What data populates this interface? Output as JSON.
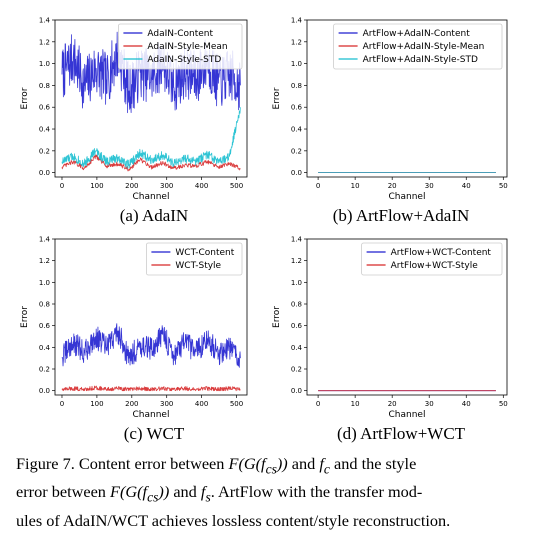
{
  "chart_data": [
    {
      "type": "line",
      "panel": "(a) AdaIN",
      "xlabel": "Channel",
      "ylabel": "Error",
      "xlim": [
        -20,
        530
      ],
      "ylim": [
        -0.04,
        1.4
      ],
      "xticks": [
        0,
        100,
        200,
        300,
        400,
        500
      ],
      "yticks": [
        0.0,
        0.2,
        0.4,
        0.6,
        0.8,
        1.0,
        1.2,
        1.4
      ],
      "legend_position": "top-right",
      "n_points": 512,
      "series": [
        {
          "name": "AdaIN-Content",
          "color": "#1f1fcf",
          "x": [
            0,
            32,
            64,
            96,
            128,
            160,
            192,
            224,
            256,
            288,
            320,
            352,
            384,
            416,
            448,
            480,
            511
          ],
          "values": [
            0.9,
            1.05,
            0.8,
            0.95,
            0.85,
            1.1,
            0.75,
            0.92,
            0.88,
            1.0,
            0.78,
            0.93,
            0.86,
            1.02,
            0.82,
            0.9,
            0.8
          ]
        },
        {
          "name": "AdaIN-Style-Mean",
          "color": "#d62728",
          "x": [
            0,
            32,
            64,
            96,
            128,
            160,
            192,
            224,
            256,
            288,
            320,
            352,
            384,
            416,
            448,
            480,
            511
          ],
          "values": [
            0.05,
            0.1,
            0.04,
            0.15,
            0.06,
            0.08,
            0.03,
            0.12,
            0.05,
            0.09,
            0.04,
            0.07,
            0.06,
            0.1,
            0.05,
            0.08,
            0.04
          ]
        },
        {
          "name": "AdaIN-Style-STD",
          "color": "#17becf",
          "x": [
            0,
            32,
            64,
            96,
            128,
            160,
            192,
            224,
            256,
            288,
            320,
            352,
            384,
            416,
            448,
            480,
            511
          ],
          "values": [
            0.1,
            0.15,
            0.08,
            0.2,
            0.1,
            0.14,
            0.07,
            0.18,
            0.12,
            0.16,
            0.08,
            0.13,
            0.1,
            0.17,
            0.09,
            0.15,
            0.6
          ]
        }
      ]
    },
    {
      "type": "line",
      "panel": "(b) ArtFlow+AdaIN",
      "xlabel": "Channel",
      "ylabel": "Error",
      "xlim": [
        -3,
        51
      ],
      "ylim": [
        -0.04,
        1.4
      ],
      "xticks": [
        0,
        10,
        20,
        30,
        40,
        50
      ],
      "yticks": [
        0.0,
        0.2,
        0.4,
        0.6,
        0.8,
        1.0,
        1.2,
        1.4
      ],
      "legend_position": "top-right",
      "series": [
        {
          "name": "ArtFlow+AdaIN-Content",
          "color": "#1f1fcf",
          "x": [
            0,
            48
          ],
          "values": [
            0.0,
            0.0
          ]
        },
        {
          "name": "ArtFlow+AdaIN-Style-Mean",
          "color": "#d62728",
          "x": [
            0,
            48
          ],
          "values": [
            0.0,
            0.0
          ]
        },
        {
          "name": "ArtFlow+AdaIN-Style-STD",
          "color": "#17becf",
          "x": [
            0,
            48
          ],
          "values": [
            0.0,
            0.0
          ]
        }
      ]
    },
    {
      "type": "line",
      "panel": "(c) WCT",
      "xlabel": "Channel",
      "ylabel": "Error",
      "xlim": [
        -20,
        530
      ],
      "ylim": [
        -0.04,
        1.4
      ],
      "xticks": [
        0,
        100,
        200,
        300,
        400,
        500
      ],
      "yticks": [
        0.0,
        0.2,
        0.4,
        0.6,
        0.8,
        1.0,
        1.2,
        1.4
      ],
      "legend_position": "top-right",
      "n_points": 512,
      "series": [
        {
          "name": "WCT-Content",
          "color": "#1f1fcf",
          "x": [
            0,
            32,
            64,
            96,
            128,
            160,
            192,
            224,
            256,
            288,
            320,
            352,
            384,
            416,
            448,
            480,
            511
          ],
          "values": [
            0.3,
            0.45,
            0.35,
            0.5,
            0.4,
            0.55,
            0.3,
            0.42,
            0.38,
            0.52,
            0.33,
            0.44,
            0.36,
            0.48,
            0.34,
            0.4,
            0.3
          ]
        },
        {
          "name": "WCT-Style",
          "color": "#d62728",
          "x": [
            0,
            32,
            64,
            96,
            128,
            160,
            192,
            224,
            256,
            288,
            320,
            352,
            384,
            416,
            448,
            480,
            511
          ],
          "values": [
            0.01,
            0.02,
            0.01,
            0.03,
            0.01,
            0.02,
            0.01,
            0.02,
            0.01,
            0.02,
            0.01,
            0.02,
            0.01,
            0.02,
            0.01,
            0.02,
            0.01
          ]
        }
      ]
    },
    {
      "type": "line",
      "panel": "(d) ArtFlow+WCT",
      "xlabel": "Channel",
      "ylabel": "Error",
      "xlim": [
        -3,
        51
      ],
      "ylim": [
        -0.04,
        1.4
      ],
      "xticks": [
        0,
        10,
        20,
        30,
        40,
        50
      ],
      "yticks": [
        0.0,
        0.2,
        0.4,
        0.6,
        0.8,
        1.0,
        1.2,
        1.4
      ],
      "legend_position": "top-right",
      "series": [
        {
          "name": "ArtFlow+WCT-Content",
          "color": "#1f1fcf",
          "x": [
            0,
            48
          ],
          "values": [
            0.0,
            0.0
          ]
        },
        {
          "name": "ArtFlow+WCT-Style",
          "color": "#d62728",
          "x": [
            0,
            48
          ],
          "values": [
            0.0,
            0.0
          ]
        }
      ]
    }
  ],
  "subfigure_labels": [
    "(a) AdaIN",
    "(b) ArtFlow+AdaIN",
    "(c) WCT",
    "(d) ArtFlow+WCT"
  ],
  "caption": {
    "p1": "Figure 7. Content error between ",
    "m1": "F(G(f",
    "m1sub": "cs",
    "m1end": "))",
    "p2": " and ",
    "m2": "f",
    "m2sub": "c",
    "p3": " and the style",
    "p4": "error between ",
    "m3": "F(G(f",
    "m3sub": "cs",
    "m3end": "))",
    "p5": " and ",
    "m4": "f",
    "m4sub": "s",
    "p6": ". ArtFlow with the transfer mod-",
    "line3": "ules of AdaIN/WCT achieves lossless content/style reconstruction."
  }
}
